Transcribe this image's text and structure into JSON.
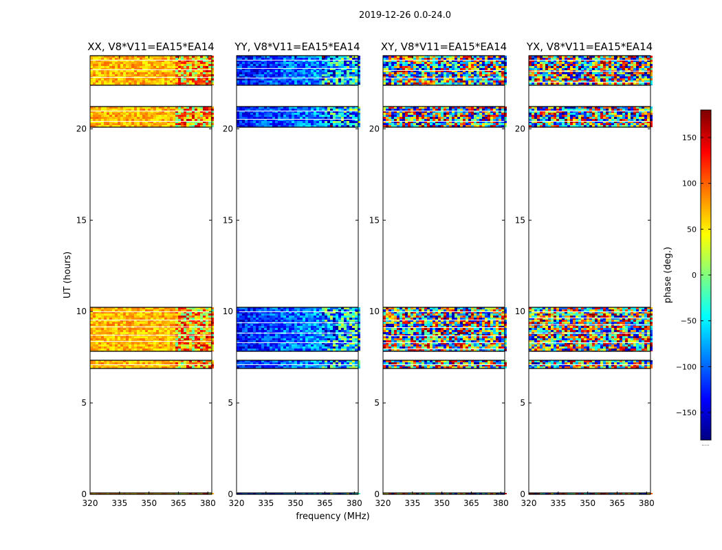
{
  "chart_data": {
    "type": "heatmap",
    "suptitle": "2019-12-26 0.0-24.0",
    "xlabel": "frequency (MHz)",
    "ylabel": "UT (hours)",
    "xlim": [
      320,
      382
    ],
    "ylim": [
      0,
      24
    ],
    "xticks": [
      320,
      335,
      350,
      365,
      380
    ],
    "yticks": [
      0,
      5,
      10,
      15,
      20
    ],
    "colormap": "jet",
    "colorbar": {
      "label": "phase (deg.)",
      "range": [
        -180,
        180
      ],
      "ticks": [
        150,
        100,
        50,
        0,
        -50,
        -100,
        -150
      ],
      "tick_labels": [
        "150",
        "100",
        "50",
        "0",
        "−50",
        "−100",
        "−150"
      ]
    },
    "data_time_bands_hours": [
      [
        0.0,
        0.05
      ],
      [
        6.9,
        7.3
      ],
      [
        7.85,
        10.2
      ],
      [
        20.1,
        21.2
      ],
      [
        22.4,
        24.0
      ]
    ],
    "structure_change_frequency_mhz": 363,
    "panels": [
      {
        "title": "XX, V8*V11=EA15*EA14",
        "mean_phase_low_freq_deg": 70,
        "mean_phase_high_freq_deg": 70,
        "scatter": 30
      },
      {
        "title": "YY, V8*V11=EA15*EA14",
        "mean_phase_low_freq_deg": -130,
        "mean_phase_high_freq_deg": -60,
        "scatter": 45
      },
      {
        "title": "XY, V8*V11=EA15*EA14",
        "mean_phase_low_freq_deg": 0,
        "mean_phase_high_freq_deg": 0,
        "scatter": 180
      },
      {
        "title": "YX, V8*V11=EA15*EA14",
        "mean_phase_low_freq_deg": 0,
        "mean_phase_high_freq_deg": 0,
        "scatter": 180
      }
    ]
  },
  "colorbar_footer": "....."
}
